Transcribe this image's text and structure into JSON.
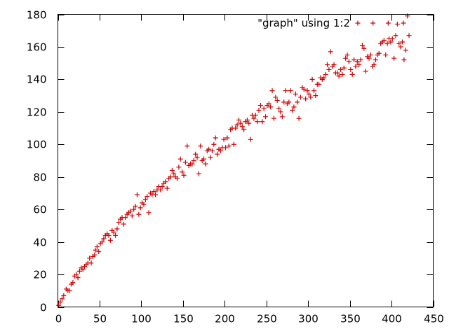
{
  "chart_data": {
    "type": "scatter",
    "title": "",
    "xlabel": "",
    "ylabel": "",
    "xlim": [
      0,
      450
    ],
    "ylim": [
      0,
      180
    ],
    "xticks": [
      0,
      50,
      100,
      150,
      200,
      250,
      300,
      350,
      400,
      450
    ],
    "yticks": [
      0,
      20,
      40,
      60,
      80,
      100,
      120,
      140,
      160,
      180
    ],
    "grid": false,
    "legend_position": "top-right",
    "marker": "plus",
    "series": [
      {
        "name": "\"graph\" using 1:2",
        "color": "#cc0000",
        "points": [
          [
            1,
            1
          ],
          [
            3,
            3
          ],
          [
            5,
            5
          ],
          [
            7,
            7
          ],
          [
            10,
            11
          ],
          [
            12,
            10
          ],
          [
            14,
            10
          ],
          [
            16,
            14
          ],
          [
            18,
            15
          ],
          [
            20,
            19
          ],
          [
            22,
            20
          ],
          [
            24,
            18
          ],
          [
            26,
            22
          ],
          [
            28,
            24
          ],
          [
            30,
            23
          ],
          [
            32,
            25
          ],
          [
            34,
            26
          ],
          [
            36,
            27
          ],
          [
            38,
            30
          ],
          [
            40,
            27
          ],
          [
            42,
            31
          ],
          [
            44,
            32
          ],
          [
            45,
            35
          ],
          [
            47,
            37
          ],
          [
            49,
            34
          ],
          [
            51,
            39
          ],
          [
            53,
            40
          ],
          [
            55,
            42
          ],
          [
            57,
            44
          ],
          [
            59,
            45
          ],
          [
            61,
            44
          ],
          [
            63,
            41
          ],
          [
            65,
            47
          ],
          [
            67,
            46
          ],
          [
            69,
            44
          ],
          [
            71,
            48
          ],
          [
            73,
            52
          ],
          [
            75,
            54
          ],
          [
            77,
            55
          ],
          [
            79,
            51
          ],
          [
            81,
            55
          ],
          [
            83,
            57
          ],
          [
            85,
            58
          ],
          [
            87,
            59
          ],
          [
            89,
            56
          ],
          [
            91,
            60
          ],
          [
            93,
            62
          ],
          [
            95,
            69
          ],
          [
            97,
            57
          ],
          [
            99,
            61
          ],
          [
            101,
            64
          ],
          [
            103,
            63
          ],
          [
            105,
            66
          ],
          [
            107,
            68
          ],
          [
            109,
            58
          ],
          [
            111,
            70
          ],
          [
            113,
            69
          ],
          [
            115,
            71
          ],
          [
            117,
            69
          ],
          [
            119,
            72
          ],
          [
            121,
            74
          ],
          [
            123,
            72
          ],
          [
            125,
            74
          ],
          [
            127,
            76
          ],
          [
            129,
            77
          ],
          [
            131,
            73
          ],
          [
            133,
            79
          ],
          [
            135,
            80
          ],
          [
            137,
            84
          ],
          [
            139,
            82
          ],
          [
            141,
            80
          ],
          [
            143,
            79
          ],
          [
            145,
            86
          ],
          [
            147,
            91
          ],
          [
            149,
            83
          ],
          [
            151,
            81
          ],
          [
            153,
            89
          ],
          [
            155,
            99
          ],
          [
            157,
            87
          ],
          [
            159,
            88
          ],
          [
            161,
            88
          ],
          [
            163,
            90
          ],
          [
            165,
            94
          ],
          [
            167,
            92
          ],
          [
            169,
            82
          ],
          [
            171,
            99
          ],
          [
            173,
            90
          ],
          [
            175,
            91
          ],
          [
            177,
            88
          ],
          [
            179,
            96
          ],
          [
            181,
            97
          ],
          [
            183,
            92
          ],
          [
            185,
            96
          ],
          [
            187,
            100
          ],
          [
            189,
            104
          ],
          [
            191,
            94
          ],
          [
            193,
            97
          ],
          [
            195,
            96
          ],
          [
            197,
            98
          ],
          [
            199,
            103
          ],
          [
            201,
            98
          ],
          [
            203,
            104
          ],
          [
            205,
            99
          ],
          [
            207,
            109
          ],
          [
            209,
            110
          ],
          [
            211,
            100
          ],
          [
            213,
            110
          ],
          [
            215,
            112
          ],
          [
            217,
            115
          ],
          [
            219,
            113
          ],
          [
            221,
            111
          ],
          [
            223,
            109
          ],
          [
            225,
            114
          ],
          [
            227,
            115
          ],
          [
            229,
            113
          ],
          [
            231,
            103
          ],
          [
            233,
            118
          ],
          [
            235,
            116
          ],
          [
            237,
            118
          ],
          [
            239,
            114
          ],
          [
            241,
            121
          ],
          [
            243,
            124
          ],
          [
            245,
            114
          ],
          [
            247,
            122
          ],
          [
            249,
            117
          ],
          [
            251,
            124
          ],
          [
            253,
            125
          ],
          [
            255,
            123
          ],
          [
            257,
            133
          ],
          [
            259,
            116
          ],
          [
            261,
            129
          ],
          [
            263,
            127
          ],
          [
            265,
            122
          ],
          [
            267,
            120
          ],
          [
            269,
            117
          ],
          [
            271,
            126
          ],
          [
            273,
            133
          ],
          [
            275,
            125
          ],
          [
            277,
            126
          ],
          [
            279,
            133
          ],
          [
            281,
            121
          ],
          [
            283,
            123
          ],
          [
            285,
            131
          ],
          [
            287,
            126
          ],
          [
            289,
            116
          ],
          [
            291,
            129
          ],
          [
            293,
            135
          ],
          [
            295,
            134
          ],
          [
            297,
            128
          ],
          [
            299,
            133
          ],
          [
            301,
            131
          ],
          [
            303,
            129
          ],
          [
            305,
            140
          ],
          [
            307,
            133
          ],
          [
            309,
            130
          ],
          [
            311,
            137
          ],
          [
            313,
            137
          ],
          [
            315,
            141
          ],
          [
            317,
            140
          ],
          [
            319,
            141
          ],
          [
            321,
            143
          ],
          [
            323,
            149
          ],
          [
            325,
            146
          ],
          [
            327,
            157
          ],
          [
            329,
            148
          ],
          [
            331,
            149
          ],
          [
            333,
            144
          ],
          [
            335,
            144
          ],
          [
            337,
            142
          ],
          [
            339,
            146
          ],
          [
            341,
            143
          ],
          [
            343,
            147
          ],
          [
            345,
            153
          ],
          [
            347,
            155
          ],
          [
            349,
            151
          ],
          [
            351,
            146
          ],
          [
            353,
            143
          ],
          [
            355,
            152
          ],
          [
            357,
            148
          ],
          [
            359,
            151
          ],
          [
            361,
            149
          ],
          [
            363,
            152
          ],
          [
            365,
            161
          ],
          [
            367,
            159
          ],
          [
            369,
            145
          ],
          [
            371,
            154
          ],
          [
            373,
            153
          ],
          [
            375,
            155
          ],
          [
            377,
            148
          ],
          [
            379,
            149
          ],
          [
            381,
            152
          ],
          [
            383,
            155
          ],
          [
            385,
            156
          ],
          [
            387,
            162
          ],
          [
            389,
            163
          ],
          [
            391,
            164
          ],
          [
            393,
            155
          ],
          [
            395,
            162
          ],
          [
            397,
            165
          ],
          [
            399,
            163
          ],
          [
            401,
            165
          ],
          [
            403,
            153
          ],
          [
            405,
            167
          ],
          [
            407,
            174
          ],
          [
            409,
            162
          ],
          [
            411,
            160
          ],
          [
            413,
            163
          ],
          [
            415,
            152
          ],
          [
            417,
            158
          ],
          [
            419,
            179
          ],
          [
            421,
            167
          ]
        ]
      }
    ]
  }
}
